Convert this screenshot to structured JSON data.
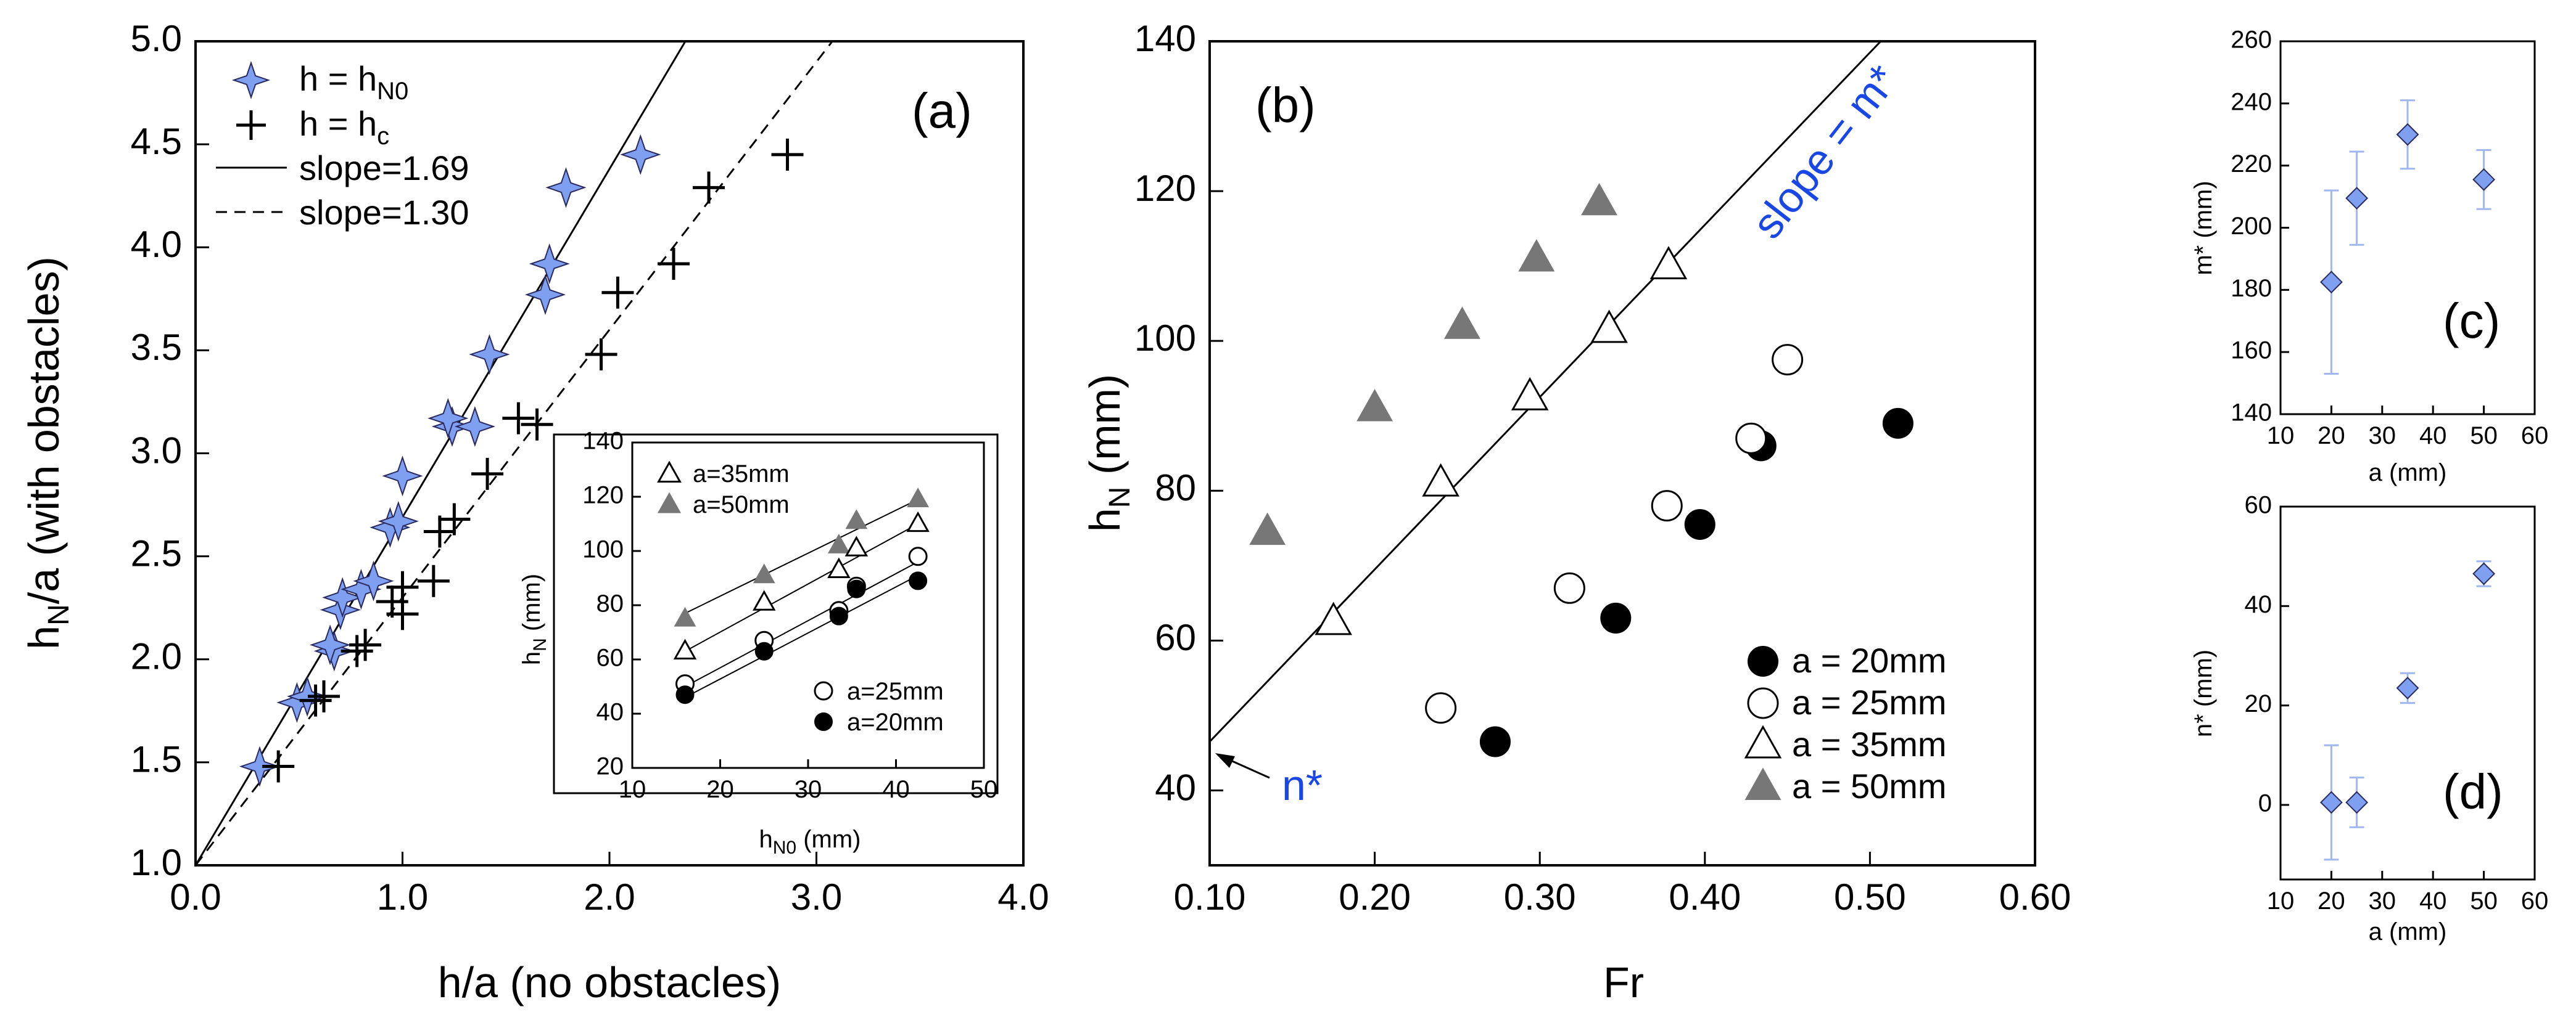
{
  "colors": {
    "diamond_fill": "#7fa0f0",
    "diamond_stroke": "#2a2a60",
    "gray_fill": "#777777",
    "blue_text": "#1947e6",
    "errorbar": "#9fb6ee"
  },
  "chart_data": [
    {
      "id": "a",
      "type": "scatter",
      "panel_label": "(a)",
      "xlabel": "h/a (no obstacles)",
      "ylabel_main": "h",
      "ylabel_sub": "N",
      "ylabel_rest": "/a (with obstacles)",
      "xlim": [
        0.0,
        4.0
      ],
      "ylim": [
        1.0,
        5.0
      ],
      "xticks": [
        "0.0",
        "1.0",
        "2.0",
        "3.0",
        "4.0"
      ],
      "yticks": [
        "1.0",
        "1.5",
        "2.0",
        "2.5",
        "3.0",
        "3.5",
        "4.0",
        "4.5",
        "5.0"
      ],
      "legend": {
        "hN0_main": "h = h",
        "hN0_sub": "N0",
        "hc_main": "h = h",
        "hc_sub": "c",
        "slope1": "slope=1.69",
        "slope2": "slope=1.30"
      },
      "lines": [
        {
          "name": "slope=1.69",
          "style": "solid",
          "slope": 1.69,
          "intercept": 1.0
        },
        {
          "name": "slope=1.30",
          "style": "dashed",
          "slope": 1.3,
          "intercept": 1.0
        }
      ],
      "series": [
        {
          "name": "h = hN0",
          "marker": "star4",
          "points": [
            [
              0.31,
              1.48
            ],
            [
              0.49,
              1.79
            ],
            [
              0.54,
              1.82
            ],
            [
              0.67,
              2.04
            ],
            [
              0.65,
              2.07
            ],
            [
              0.7,
              2.24
            ],
            [
              0.71,
              2.3
            ],
            [
              0.8,
              2.34
            ],
            [
              0.86,
              2.38
            ],
            [
              0.94,
              2.64
            ],
            [
              0.98,
              2.67
            ],
            [
              1.0,
              2.89
            ],
            [
              1.24,
              3.13
            ],
            [
              1.22,
              3.17
            ],
            [
              1.35,
              3.13
            ],
            [
              1.42,
              3.48
            ],
            [
              1.69,
              3.77
            ],
            [
              1.71,
              3.92
            ],
            [
              1.79,
              4.29
            ],
            [
              2.15,
              4.45
            ]
          ]
        },
        {
          "name": "h = hc",
          "marker": "plus",
          "points": [
            [
              0.4,
              1.48
            ],
            [
              0.58,
              1.8
            ],
            [
              0.62,
              1.82
            ],
            [
              0.78,
              2.04
            ],
            [
              0.82,
              2.07
            ],
            [
              0.95,
              2.28
            ],
            [
              1.0,
              2.22
            ],
            [
              1.0,
              2.35
            ],
            [
              1.15,
              2.38
            ],
            [
              1.18,
              2.62
            ],
            [
              1.25,
              2.68
            ],
            [
              1.41,
              2.9
            ],
            [
              1.56,
              3.17
            ],
            [
              1.65,
              3.14
            ],
            [
              1.96,
              3.48
            ],
            [
              2.04,
              3.78
            ],
            [
              2.31,
              3.92
            ],
            [
              2.48,
              4.29
            ],
            [
              2.86,
              4.45
            ]
          ]
        }
      ]
    },
    {
      "id": "a-inset",
      "type": "scatter",
      "xlabel_main": "h",
      "xlabel_sub": "N0",
      "xlabel_rest": " (mm)",
      "ylabel_main": "h",
      "ylabel_sub": "N",
      "ylabel_rest": " (mm)",
      "xlim": [
        10,
        50
      ],
      "ylim": [
        20,
        140
      ],
      "xticks": [
        "10",
        "20",
        "30",
        "40",
        "50"
      ],
      "yticks": [
        "20",
        "40",
        "60",
        "80",
        "100",
        "120",
        "140"
      ],
      "legend": {
        "a35": "a=35mm",
        "a50": "a=50mm",
        "a25": "a=25mm",
        "a20": "a=20mm"
      },
      "series": [
        {
          "name": "a=50mm",
          "marker": "triangle-filled",
          "points": [
            [
              16,
              75
            ],
            [
              25,
              91
            ],
            [
              33.5,
              102
            ],
            [
              35.5,
              111
            ],
            [
              42.5,
              119
            ]
          ]
        },
        {
          "name": "a=35mm",
          "marker": "triangle-open",
          "points": [
            [
              16,
              63
            ],
            [
              25,
              81
            ],
            [
              33.5,
              93
            ],
            [
              35.5,
              101
            ],
            [
              42.5,
              110
            ]
          ]
        },
        {
          "name": "a=25mm",
          "marker": "circle-open",
          "points": [
            [
              16,
              51
            ],
            [
              25,
              67
            ],
            [
              33.5,
              78
            ],
            [
              35.5,
              87
            ],
            [
              42.5,
              98
            ]
          ]
        },
        {
          "name": "a=20mm",
          "marker": "circle-filled",
          "points": [
            [
              16,
              47
            ],
            [
              25,
              63
            ],
            [
              33.5,
              76
            ],
            [
              35.5,
              86
            ],
            [
              42.5,
              89
            ]
          ]
        }
      ],
      "fit_lines": [
        {
          "name": "a=50mm",
          "from": [
            16,
            77
          ],
          "to": [
            42.5,
            119
          ]
        },
        {
          "name": "a=35mm",
          "from": [
            16,
            63
          ],
          "to": [
            42.5,
            110
          ]
        },
        {
          "name": "a=25mm",
          "from": [
            16,
            50
          ],
          "to": [
            42.5,
            96
          ]
        },
        {
          "name": "a=20mm",
          "from": [
            16,
            46
          ],
          "to": [
            42.5,
            91
          ]
        }
      ]
    },
    {
      "id": "b",
      "type": "scatter",
      "panel_label": "(b)",
      "xlabel": "Fr",
      "ylabel_main": "h",
      "ylabel_sub": "N",
      "ylabel_rest": " (mm)",
      "xlim": [
        0.1,
        0.6
      ],
      "ylim": [
        30,
        140
      ],
      "xticks": [
        "0.10",
        "0.20",
        "0.30",
        "0.40",
        "0.50",
        "0.60"
      ],
      "yticks": [
        "40",
        "60",
        "80",
        "100",
        "120",
        "140"
      ],
      "annotation_slope": "slope = m*",
      "annotation_intercept": "n*",
      "line": {
        "name": "slope = m*",
        "slope": 230,
        "intercept": 23.5
      },
      "legend": {
        "a20": "a = 20mm",
        "a25": "a = 25mm",
        "a35": "a = 35mm",
        "a50": "a = 50mm"
      },
      "series": [
        {
          "name": "a = 20mm",
          "marker": "circle-filled",
          "points": [
            [
              0.273,
              46.5
            ],
            [
              0.346,
              63
            ],
            [
              0.397,
              75.5
            ],
            [
              0.434,
              86
            ],
            [
              0.517,
              89
            ]
          ]
        },
        {
          "name": "a = 25mm",
          "marker": "circle-open",
          "points": [
            [
              0.24,
              51
            ],
            [
              0.318,
              67
            ],
            [
              0.377,
              78
            ],
            [
              0.428,
              87
            ],
            [
              0.45,
              97.5
            ]
          ]
        },
        {
          "name": "a = 35mm",
          "marker": "triangle-open",
          "points": [
            [
              0.175,
              62.5
            ],
            [
              0.24,
              81
            ],
            [
              0.294,
              92.5
            ],
            [
              0.342,
              101.5
            ],
            [
              0.378,
              110
            ]
          ]
        },
        {
          "name": "a = 50mm",
          "marker": "triangle-filled",
          "points": [
            [
              0.135,
              74.5
            ],
            [
              0.2,
              91
            ],
            [
              0.253,
              102
            ],
            [
              0.298,
              111
            ],
            [
              0.336,
              118.5
            ]
          ]
        }
      ]
    },
    {
      "id": "c",
      "type": "scatter",
      "panel_label": "(c)",
      "xlabel": "a (mm)",
      "ylabel": "m* (mm)",
      "xlim": [
        10,
        60
      ],
      "ylim": [
        140,
        260
      ],
      "xticks": [
        "10",
        "20",
        "30",
        "40",
        "50",
        "60"
      ],
      "yticks": [
        "140",
        "160",
        "180",
        "200",
        "220",
        "240",
        "260"
      ],
      "series": [
        {
          "name": "m*",
          "marker": "diamond",
          "points": [
            {
              "x": 20,
              "y": 182.5,
              "err": 29.5
            },
            {
              "x": 25,
              "y": 209.5,
              "err": 15
            },
            {
              "x": 35,
              "y": 230,
              "err": 11
            },
            {
              "x": 50,
              "y": 215.5,
              "err": 9.5
            }
          ]
        }
      ]
    },
    {
      "id": "d",
      "type": "scatter",
      "panel_label": "(d)",
      "xlabel": "a (mm)",
      "ylabel": "n* (mm)",
      "xlim": [
        10,
        60
      ],
      "ylim": [
        -15,
        60
      ],
      "xticks": [
        "10",
        "20",
        "30",
        "40",
        "50",
        "60"
      ],
      "yticks": [
        "0",
        "20",
        "40",
        "60"
      ],
      "series": [
        {
          "name": "n*",
          "marker": "diamond",
          "points": [
            {
              "x": 20,
              "y": 0.5,
              "err": 11.5
            },
            {
              "x": 25,
              "y": 0.5,
              "err": 5
            },
            {
              "x": 35,
              "y": 23.5,
              "err": 3
            },
            {
              "x": 50,
              "y": 46.5,
              "err": 2.5
            }
          ]
        }
      ]
    }
  ]
}
